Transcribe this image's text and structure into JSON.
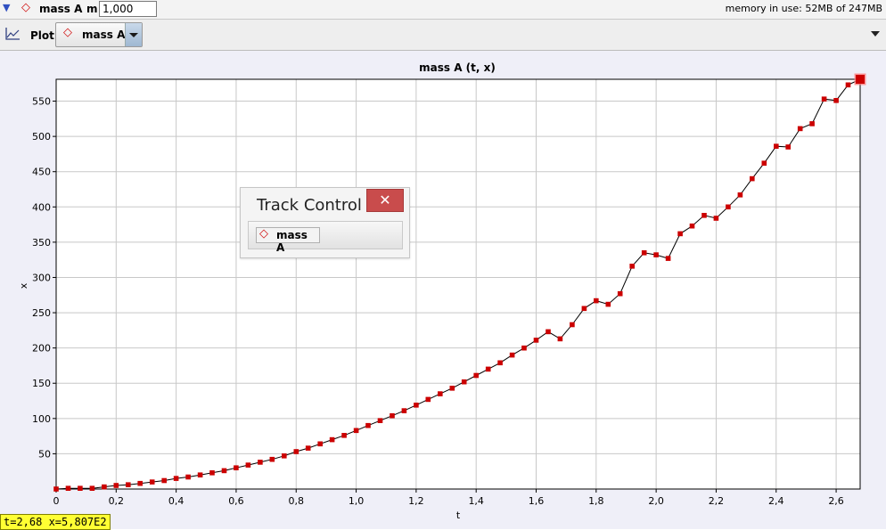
{
  "topbar": {
    "collapse_icon": "triangle-down-icon",
    "particle_icon": "diamond-icon",
    "particle_name": "mass A",
    "mass_label": "m",
    "mass_value": "1,000",
    "memory_text": "memory in use: 52MB of 247MB"
  },
  "toolbar": {
    "plot_icon": "line-chart-icon",
    "plot_label": "Plot",
    "plot_select_value": "mass A",
    "menu_icon": "triangle-down-icon"
  },
  "track_control": {
    "title": "Track Control",
    "close_icon": "close-icon",
    "item_label": "mass A",
    "item_icon": "diamond-icon"
  },
  "status": {
    "readout": "t=2,68  x=5,807E2"
  },
  "colors": {
    "marker": "#cc0000",
    "line": "#000000",
    "grid": "#c8c8c8",
    "plot_bg": "#ffffff",
    "frame_bg": "#efeff8",
    "status_bg": "#ffff33",
    "close_button": "#c94c4c"
  },
  "chart_data": {
    "type": "scatter",
    "title": "mass A (t, x)",
    "xlabel": "t",
    "ylabel": "x",
    "xlim": [
      0,
      2.68
    ],
    "ylim": [
      0,
      581
    ],
    "grid": true,
    "x_ticks": [
      "0",
      "0,2",
      "0,4",
      "0,6",
      "0,8",
      "1,0",
      "1,2",
      "1,4",
      "1,6",
      "1,8",
      "2,0",
      "2,2",
      "2,4",
      "2,6"
    ],
    "x_tick_values": [
      0,
      0.2,
      0.4,
      0.6,
      0.8,
      1.0,
      1.2,
      1.4,
      1.6,
      1.8,
      2.0,
      2.2,
      2.4,
      2.6
    ],
    "y_ticks": [
      "50",
      "100",
      "150",
      "200",
      "250",
      "300",
      "350",
      "400",
      "450",
      "500",
      "550"
    ],
    "y_tick_values": [
      50,
      100,
      150,
      200,
      250,
      300,
      350,
      400,
      450,
      500,
      550
    ],
    "series": [
      {
        "x": [
          0,
          0.04,
          0.08,
          0.12,
          0.16,
          0.2,
          0.24,
          0.28,
          0.32,
          0.36,
          0.4,
          0.44,
          0.48,
          0.52,
          0.56,
          0.6,
          0.64,
          0.68,
          0.72,
          0.76,
          0.8,
          0.84,
          0.88,
          0.92,
          0.96,
          1.0,
          1.04,
          1.08,
          1.12,
          1.16,
          1.2,
          1.24,
          1.28,
          1.32,
          1.36,
          1.4,
          1.44,
          1.48,
          1.52,
          1.56,
          1.6,
          1.64,
          1.68,
          1.72,
          1.76,
          1.8,
          1.84,
          1.88,
          1.92,
          1.96,
          2.0,
          2.04,
          2.08,
          2.12,
          2.16,
          2.2,
          2.24,
          2.28,
          2.32,
          2.36,
          2.4,
          2.44,
          2.48,
          2.52,
          2.56,
          2.6,
          2.64,
          2.68
        ],
        "y": [
          0,
          1,
          1,
          1,
          3,
          5,
          6,
          8,
          10,
          12,
          15,
          17,
          20,
          23,
          26,
          30,
          34,
          38,
          42,
          47,
          53,
          58,
          64,
          70,
          76,
          83,
          90,
          97,
          104,
          111,
          119,
          127,
          135,
          143,
          152,
          161,
          170,
          179,
          190,
          200,
          211,
          223,
          213,
          233,
          256,
          267,
          262,
          277,
          316,
          335,
          332,
          327,
          362,
          373,
          388,
          384,
          400,
          417,
          440,
          462,
          486,
          485,
          511,
          518,
          553,
          551,
          573,
          581
        ]
      }
    ]
  }
}
